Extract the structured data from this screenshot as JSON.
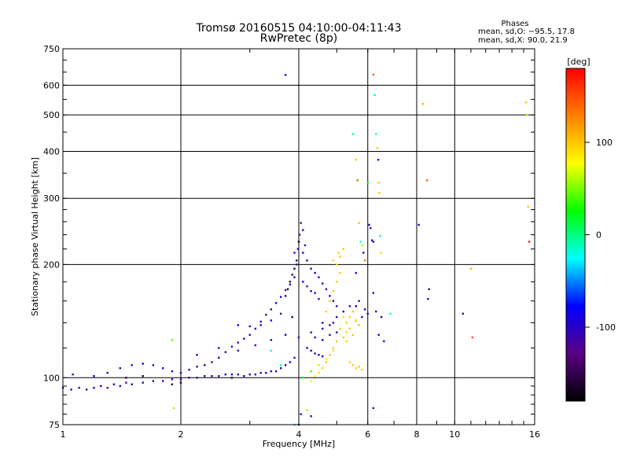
{
  "chart_data": {
    "type": "scatter",
    "title": "Tromsø 20160515 04:10:00-04:11:43",
    "subtitle": "RwPretec (8p)",
    "xlabel": "Frequency [MHz]",
    "ylabel": "Stationary phase Virtual Height [km]",
    "x_scale": "log",
    "y_scale": "log",
    "xlim": [
      1,
      16
    ],
    "ylim": [
      75,
      750
    ],
    "x_ticks": [
      1,
      2,
      4,
      6,
      8,
      10,
      16
    ],
    "y_ticks": [
      75,
      100,
      200,
      300,
      400,
      500,
      600,
      750
    ],
    "grid": true,
    "phase_stats": {
      "title": "Phases",
      "line_o": "mean, sd,O: −95.5, 17.8",
      "line_x": "mean, sd,X:  90.0, 21.9"
    },
    "colorbar": {
      "label": "[deg]",
      "range": [
        -180,
        180
      ],
      "ticks": [
        100,
        0,
        -100
      ],
      "stops": [
        "#000000",
        "#5a0082",
        "#0000ff",
        "#00ffff",
        "#00ff00",
        "#ffff00",
        "#ff8000",
        "#ff0000"
      ]
    },
    "series": [
      {
        "points": [
          [
            1.0,
            94,
            -110
          ],
          [
            1.05,
            93,
            -105
          ],
          [
            1.1,
            94,
            -115
          ],
          [
            1.15,
            93,
            -100
          ],
          [
            1.2,
            94,
            -110
          ],
          [
            1.25,
            95,
            -105
          ],
          [
            1.3,
            94,
            -120
          ],
          [
            1.35,
            96,
            -100
          ],
          [
            1.4,
            95,
            -110
          ],
          [
            1.45,
            97,
            -115
          ],
          [
            1.5,
            96,
            -105
          ],
          [
            1.6,
            97,
            -100
          ],
          [
            1.7,
            98,
            -110
          ],
          [
            1.8,
            98,
            -105
          ],
          [
            1.9,
            99,
            -120
          ],
          [
            2.0,
            99,
            -110
          ],
          [
            2.1,
            100,
            -100
          ],
          [
            2.2,
            100,
            -115
          ],
          [
            2.3,
            101,
            -105
          ],
          [
            2.4,
            101,
            -90
          ],
          [
            2.5,
            101,
            -110
          ],
          [
            2.6,
            102,
            -100
          ],
          [
            2.7,
            102,
            -95
          ],
          [
            2.8,
            102,
            -115
          ],
          [
            2.9,
            101,
            -80
          ],
          [
            3.0,
            102,
            -100
          ],
          [
            3.1,
            102,
            -110
          ],
          [
            3.2,
            103,
            -105
          ],
          [
            3.3,
            103,
            -90
          ],
          [
            3.4,
            104,
            -115
          ],
          [
            3.5,
            104,
            -100
          ],
          [
            3.6,
            106,
            -110
          ],
          [
            3.7,
            108,
            -95
          ],
          [
            3.8,
            110,
            -100
          ],
          [
            3.9,
            113,
            -105
          ],
          [
            1.06,
            102,
            -120
          ],
          [
            1.2,
            101,
            -100
          ],
          [
            1.3,
            103,
            -110
          ],
          [
            1.4,
            106,
            -105
          ],
          [
            1.5,
            108,
            -115
          ],
          [
            1.6,
            109,
            -100
          ],
          [
            1.7,
            108,
            -120
          ],
          [
            1.8,
            106,
            -110
          ],
          [
            1.9,
            104,
            -105
          ],
          [
            2.0,
            103,
            -115
          ],
          [
            2.1,
            105,
            -100
          ],
          [
            2.2,
            107,
            -110
          ],
          [
            2.3,
            108,
            -105
          ],
          [
            2.4,
            110,
            -120
          ],
          [
            2.5,
            113,
            -100
          ],
          [
            2.6,
            117,
            -110
          ],
          [
            2.7,
            121,
            -105
          ],
          [
            2.8,
            124,
            -115
          ],
          [
            2.9,
            127,
            -100
          ],
          [
            3.0,
            130,
            -110
          ],
          [
            3.1,
            135,
            -105
          ],
          [
            3.2,
            141,
            -100
          ],
          [
            3.3,
            147,
            -115
          ],
          [
            3.4,
            152,
            -110
          ],
          [
            3.5,
            158,
            -100
          ],
          [
            3.6,
            164,
            -105
          ],
          [
            3.7,
            171,
            -120
          ],
          [
            3.8,
            177,
            -100
          ],
          [
            3.9,
            185,
            -110
          ],
          [
            3.95,
            200,
            -105
          ],
          [
            3.98,
            220,
            -110
          ],
          [
            4.02,
            240,
            -100
          ],
          [
            4.05,
            258,
            -115
          ],
          [
            4.0,
            230,
            -105
          ],
          [
            3.9,
            215,
            -110
          ],
          [
            2.8,
            138,
            -100
          ],
          [
            3.0,
            137,
            -110
          ],
          [
            3.2,
            138,
            -105
          ],
          [
            3.4,
            142,
            -100
          ],
          [
            3.6,
            148,
            -110
          ],
          [
            2.2,
            115,
            -105
          ],
          [
            2.5,
            120,
            -110
          ],
          [
            2.8,
            118,
            -100
          ],
          [
            3.1,
            122,
            -105
          ],
          [
            3.4,
            126,
            -110
          ],
          [
            3.7,
            130,
            -100
          ],
          [
            4.0,
            128,
            -115
          ],
          [
            4.3,
            132,
            -105
          ],
          [
            4.6,
            135,
            -100
          ],
          [
            4.9,
            140,
            -110
          ],
          [
            4.1,
            180,
            -100
          ],
          [
            4.2,
            175,
            -110
          ],
          [
            4.3,
            170,
            -105
          ],
          [
            4.4,
            168,
            -90
          ],
          [
            4.5,
            162,
            -110
          ],
          [
            4.1,
            215,
            -105
          ],
          [
            4.2,
            205,
            -100
          ],
          [
            4.3,
            195,
            -110
          ],
          [
            4.4,
            190,
            -105
          ],
          [
            4.5,
            185,
            -115
          ],
          [
            4.6,
            178,
            -100
          ],
          [
            4.7,
            172,
            -110
          ],
          [
            4.8,
            165,
            -105
          ],
          [
            4.9,
            160,
            -100
          ],
          [
            5.0,
            155,
            -110
          ],
          [
            3.7,
            165,
            -150
          ],
          [
            3.75,
            172,
            -160
          ],
          [
            3.8,
            180,
            -150
          ],
          [
            3.85,
            188,
            -155
          ],
          [
            3.9,
            195,
            -160
          ],
          [
            3.95,
            205,
            -150
          ],
          [
            4.0,
            230,
            -155
          ],
          [
            3.85,
            145,
            -150
          ],
          [
            4.1,
            247,
            -100
          ],
          [
            4.15,
            225,
            -110
          ],
          [
            4.2,
            120,
            -105
          ],
          [
            4.3,
            118,
            -100
          ],
          [
            4.4,
            116,
            -110
          ],
          [
            4.5,
            115,
            -105
          ],
          [
            4.6,
            114,
            -100
          ],
          [
            1.45,
            100,
            -150
          ],
          [
            1.6,
            101,
            -155
          ],
          [
            1.9,
            96,
            -150
          ],
          [
            2.0,
            97,
            -160
          ],
          [
            2.7,
            100,
            -150
          ],
          [
            1.9,
            126,
            40
          ],
          [
            1.92,
            83,
            60
          ],
          [
            3.6,
            108,
            -10
          ],
          [
            3.4,
            118,
            -20
          ],
          [
            4.1,
            100,
            20
          ],
          [
            4.3,
            104,
            40
          ],
          [
            4.5,
            108,
            60
          ],
          [
            4.7,
            112,
            80
          ],
          [
            4.9,
            118,
            90
          ],
          [
            4.3,
            98,
            70
          ],
          [
            4.4,
            101,
            80
          ],
          [
            4.5,
            103,
            90
          ],
          [
            4.6,
            106,
            95
          ],
          [
            4.7,
            110,
            100
          ],
          [
            4.8,
            115,
            100
          ],
          [
            4.9,
            120,
            95
          ],
          [
            5.0,
            125,
            100
          ],
          [
            5.1,
            135,
            100
          ],
          [
            5.2,
            145,
            95
          ],
          [
            4.7,
            150,
            100
          ],
          [
            4.8,
            160,
            100
          ],
          [
            4.9,
            170,
            95
          ],
          [
            5.0,
            180,
            100
          ],
          [
            5.1,
            190,
            100
          ],
          [
            5.0,
            200,
            95
          ],
          [
            5.1,
            210,
            100
          ],
          [
            5.2,
            220,
            100
          ],
          [
            4.9,
            205,
            95
          ],
          [
            5.05,
            215,
            100
          ],
          [
            5.3,
            140,
            100
          ],
          [
            5.4,
            145,
            95
          ],
          [
            5.5,
            150,
            100
          ],
          [
            5.6,
            142,
            105
          ],
          [
            5.7,
            138,
            100
          ],
          [
            5.5,
            108,
            100
          ],
          [
            5.6,
            106,
            95
          ],
          [
            5.7,
            107,
            100
          ],
          [
            5.8,
            105,
            100
          ],
          [
            5.4,
            110,
            95
          ],
          [
            5.2,
            128,
            100
          ],
          [
            5.3,
            132,
            95
          ],
          [
            5.4,
            135,
            100
          ],
          [
            5.5,
            130,
            100
          ],
          [
            5.3,
            125,
            95
          ],
          [
            4.6,
            140,
            -100
          ],
          [
            4.8,
            138,
            -110
          ],
          [
            5.0,
            145,
            -105
          ],
          [
            5.2,
            150,
            -100
          ],
          [
            5.4,
            155,
            -110
          ],
          [
            4.4,
            128,
            -105
          ],
          [
            4.6,
            126,
            -100
          ],
          [
            4.8,
            130,
            -110
          ],
          [
            5.0,
            132,
            -105
          ],
          [
            3.9,
            75,
            -10
          ],
          [
            4.05,
            80,
            -100
          ],
          [
            4.0,
            75,
            -110
          ],
          [
            4.3,
            79,
            -120
          ],
          [
            4.2,
            82,
            60
          ],
          [
            5.5,
            445,
            -10
          ],
          [
            5.6,
            380,
            100
          ],
          [
            5.65,
            335,
            140
          ],
          [
            5.7,
            258,
            100
          ],
          [
            5.75,
            230,
            -20
          ],
          [
            5.8,
            225,
            60
          ],
          [
            5.85,
            215,
            -100
          ],
          [
            5.9,
            205,
            130
          ],
          [
            5.6,
            190,
            -100
          ],
          [
            5.7,
            160,
            -110
          ],
          [
            5.9,
            152,
            -100
          ],
          [
            6.0,
            148,
            -105
          ],
          [
            5.8,
            145,
            -110
          ],
          [
            5.6,
            155,
            -100
          ],
          [
            6.0,
            330,
            20
          ],
          [
            6.05,
            255,
            -100
          ],
          [
            6.1,
            250,
            -110
          ],
          [
            6.15,
            232,
            -110
          ],
          [
            6.2,
            230,
            -100
          ],
          [
            6.2,
            640,
            140
          ],
          [
            6.25,
            565,
            -10
          ],
          [
            6.3,
            445,
            -20
          ],
          [
            6.35,
            408,
            100
          ],
          [
            6.38,
            380,
            -100
          ],
          [
            6.4,
            330,
            100
          ],
          [
            6.42,
            310,
            100
          ],
          [
            6.45,
            238,
            -20
          ],
          [
            6.48,
            215,
            90
          ],
          [
            6.2,
            168,
            -110
          ],
          [
            6.3,
            150,
            -100
          ],
          [
            6.4,
            130,
            -110
          ],
          [
            6.5,
            145,
            -100
          ],
          [
            6.6,
            125,
            -105
          ],
          [
            6.2,
            83,
            -100
          ],
          [
            6.85,
            148,
            -10
          ],
          [
            3.7,
            639,
            -100
          ],
          [
            8.1,
            255,
            -100
          ],
          [
            8.3,
            535,
            110
          ],
          [
            8.5,
            335,
            140
          ],
          [
            8.6,
            172,
            -110
          ],
          [
            8.55,
            162,
            -120
          ],
          [
            10.5,
            148,
            -110
          ],
          [
            11.0,
            195,
            110
          ],
          [
            11.1,
            128,
            150
          ],
          [
            15.2,
            540,
            100
          ],
          [
            15.3,
            500,
            60
          ],
          [
            15.4,
            285,
            100
          ],
          [
            15.5,
            230,
            170
          ]
        ]
      }
    ]
  }
}
